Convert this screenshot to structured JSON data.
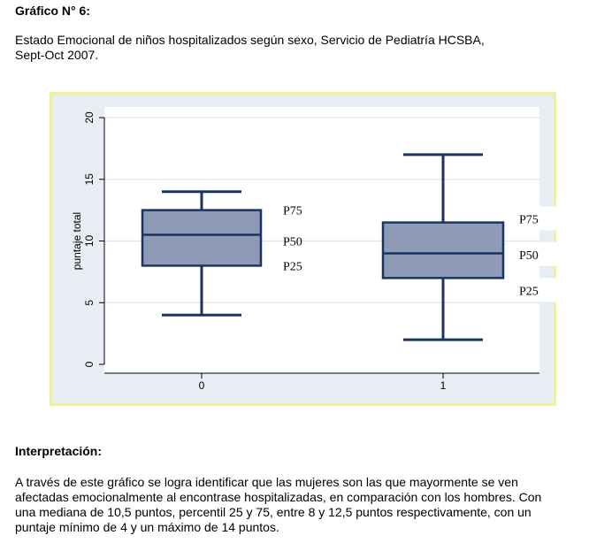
{
  "header": {
    "heading": "Gráfico N° 6:",
    "subtitle_line1": "Estado Emocional de niños hospitalizados según sexo, Servicio de Pediatría HCSBA,",
    "subtitle_line2": "Sept-Oct 2007."
  },
  "chart_data": {
    "type": "box",
    "ylabel": "puntaje total",
    "ylim": [
      0,
      20
    ],
    "yticks": [
      0,
      5,
      10,
      15,
      20
    ],
    "categories": [
      "0",
      "1"
    ],
    "boxes": [
      {
        "category": "0",
        "min": 4,
        "q1": 8,
        "median": 10.5,
        "q3": 12.5,
        "max": 14
      },
      {
        "category": "1",
        "min": 2,
        "q1": 7,
        "median": 9,
        "q3": 11.5,
        "max": 17
      }
    ],
    "annotations": [
      {
        "box": 0,
        "text": "P75",
        "y": 12.5
      },
      {
        "box": 0,
        "text": "P50",
        "y": 10
      },
      {
        "box": 0,
        "text": "P25",
        "y": 8
      },
      {
        "box": 1,
        "text": "P75",
        "y": 11.8
      },
      {
        "box": 1,
        "text": "P50",
        "y": 8.9
      },
      {
        "box": 1,
        "text": "P25",
        "y": 6
      },
      {
        "box": 0,
        "text": "",
        "y": 0
      }
    ],
    "box_color": "#8e9ab6",
    "line_color": "#1a3461",
    "plot_bg": "#ffffff",
    "outer_bg": "#e8ecf3",
    "grid": true
  },
  "interpretation": {
    "title": "Interpretación:",
    "line1": "A través de este gráfico se logra identificar que las mujeres son las que mayormente se ven",
    "line2": "afectadas emocionalmente al encontrase hospitalizadas, en comparación con los hombres. Con",
    "line3": "una mediana de 10,5 puntos, percentil 25 y 75,  entre 8 y  12,5  puntos respectivamente, con un",
    "line4": "puntaje mínimo de 4 y un máximo de 14 puntos."
  }
}
